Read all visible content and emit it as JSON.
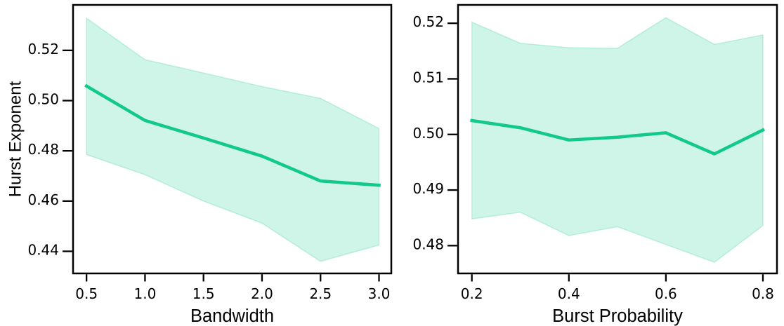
{
  "colors": {
    "line": "#10c98a",
    "band_fill": "#10c98a",
    "band_fill_opacity": 0.2,
    "band_edge_opacity": 0.22,
    "axis": "#000000",
    "text": "#000000"
  },
  "chart_data": [
    {
      "type": "line",
      "title": "",
      "xlabel": "Bandwidth",
      "ylabel": "Hurst Exponent",
      "x": [
        0.5,
        1.0,
        1.5,
        2.0,
        2.5,
        3.0
      ],
      "series": [
        {
          "name": "mean",
          "values": [
            0.5058,
            0.4921,
            0.4851,
            0.4779,
            0.468,
            0.4663
          ]
        }
      ],
      "band_upper": [
        0.5328,
        0.5163,
        0.511,
        0.5056,
        0.5009,
        0.4889
      ],
      "band_lower": [
        0.4785,
        0.4705,
        0.46,
        0.4512,
        0.436,
        0.4425
      ],
      "xticks": [
        0.5,
        1.0,
        1.5,
        2.0,
        2.5,
        3.0
      ],
      "xtick_labels": [
        "0.5",
        "1.0",
        "1.5",
        "2.0",
        "2.5",
        "3.0"
      ],
      "yticks": [
        0.44,
        0.46,
        0.48,
        0.5,
        0.52
      ],
      "ytick_labels": [
        "0.44",
        "0.46",
        "0.48",
        "0.50",
        "0.52"
      ],
      "xlim": [
        0.385,
        3.105
      ],
      "ylim": [
        0.4312,
        0.5381
      ],
      "grid": false
    },
    {
      "type": "line",
      "title": "",
      "xlabel": "Burst Probability",
      "ylabel": "",
      "x": [
        0.2,
        0.3,
        0.4,
        0.5,
        0.6,
        0.7,
        0.8
      ],
      "series": [
        {
          "name": "mean",
          "values": [
            0.5025,
            0.5012,
            0.499,
            0.4995,
            0.5003,
            0.4965,
            0.5008
          ]
        }
      ],
      "band_upper": [
        0.5202,
        0.5164,
        0.5156,
        0.5155,
        0.521,
        0.5162,
        0.5179
      ],
      "band_lower": [
        0.4848,
        0.486,
        0.4818,
        0.4834,
        0.4802,
        0.477,
        0.4836
      ],
      "xticks": [
        0.2,
        0.4,
        0.6,
        0.8
      ],
      "xtick_labels": [
        "0.2",
        "0.4",
        "0.6",
        "0.8"
      ],
      "yticks": [
        0.48,
        0.49,
        0.5,
        0.51,
        0.52
      ],
      "ytick_labels": [
        "0.48",
        "0.49",
        "0.50",
        "0.51",
        "0.52"
      ],
      "xlim": [
        0.1715,
        0.829
      ],
      "ylim": [
        0.475,
        0.5233
      ],
      "grid": false
    }
  ]
}
